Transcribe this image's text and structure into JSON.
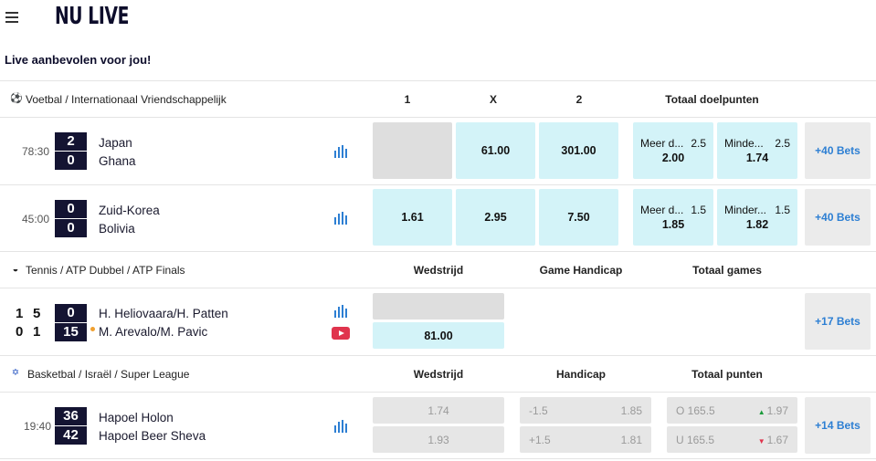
{
  "header": {
    "title": "NU LIVE",
    "subtitle": "Live aanbevolen voor jou!"
  },
  "sections": [
    {
      "icon": "soccer-ball-icon",
      "breadcrumb": "Voetbal / Internationaal Vriendschappelijk",
      "columns": [
        "1",
        "X",
        "2",
        "Totaal doelpunten"
      ],
      "matches": [
        {
          "time": "78:30",
          "home": "Japan",
          "away": "Ghana",
          "score_home": "2",
          "score_away": "0",
          "odds": [
            "",
            "61.00",
            "301.00"
          ],
          "over": {
            "label": "Meer d...",
            "line": "2.5",
            "value": "2.00"
          },
          "under": {
            "label": "Minde...",
            "line": "2.5",
            "value": "1.74"
          },
          "more": "+40 Bets"
        },
        {
          "time": "45:00",
          "home": "Zuid-Korea",
          "away": "Bolivia",
          "score_home": "0",
          "score_away": "0",
          "odds": [
            "1.61",
            "2.95",
            "7.50"
          ],
          "over": {
            "label": "Meer d...",
            "line": "1.5",
            "value": "1.85"
          },
          "under": {
            "label": "Minder...",
            "line": "1.5",
            "value": "1.82"
          },
          "more": "+40 Bets"
        }
      ]
    },
    {
      "icon": "tennis-ball-icon",
      "breadcrumb": "Tennis / ATP Dubbel / ATP Finals",
      "columns": [
        "Wedstrijd",
        "Game Handicap",
        "Totaal games"
      ],
      "matches": [
        {
          "sets_home": [
            "1",
            "5"
          ],
          "sets_away": [
            "0",
            "1"
          ],
          "score_home": "0",
          "score_away": "15",
          "home": "H. Heliovaara/H. Patten",
          "away": "M. Arevalo/M. Pavic",
          "odds": [
            "",
            "81.00"
          ],
          "more": "+17 Bets"
        }
      ]
    },
    {
      "icon": "israel-flag-icon",
      "breadcrumb": "Basketbal / Israël / Super League",
      "columns": [
        "Wedstrijd",
        "Handicap",
        "Totaal punten"
      ],
      "matches": [
        {
          "time": "19:40",
          "home": "Hapoel Holon",
          "away": "Hapoel Beer Sheva",
          "score_home": "36",
          "score_away": "42",
          "odds": [
            "1.74",
            "1.93"
          ],
          "handicap": [
            {
              "line": "-1.5",
              "value": "1.85"
            },
            {
              "line": "+1.5",
              "value": "1.81"
            }
          ],
          "totals": [
            {
              "line": "O 165.5",
              "value": "1.97",
              "trend": "up"
            },
            {
              "line": "U 165.5",
              "value": "1.67",
              "trend": "down"
            }
          ],
          "more": "+14 Bets"
        }
      ]
    }
  ]
}
